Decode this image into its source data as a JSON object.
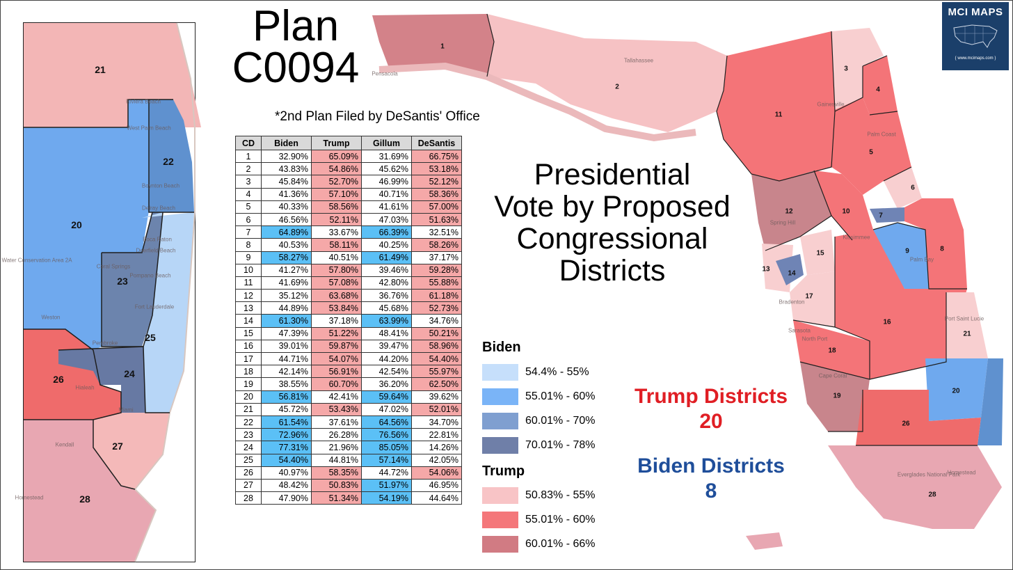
{
  "title_line1": "Plan",
  "title_line2": "C0094",
  "subtitle": "*2nd Plan Filed by DeSantis' Office",
  "heading_lines": [
    "Presidential",
    "Vote by Proposed",
    "Congressional",
    "Districts"
  ],
  "badge": {
    "title": "MCI MAPS",
    "url": "{ www.mcimaps.com }"
  },
  "colors": {
    "biden": [
      "#c6dffb",
      "#7ab4f7",
      "#7f9fd0",
      "#6f7fa8"
    ],
    "trump": [
      "#f8c4c6",
      "#f4777a",
      "#d17b83"
    ],
    "cell_biden": "#5bc0f6",
    "cell_trump": "#f5a8a8",
    "trump_text": "#e01e24",
    "biden_text": "#1f4e9a"
  },
  "table": {
    "headers": [
      "CD",
      "Biden",
      "Trump",
      "Gillum",
      "DeSantis"
    ],
    "rows": [
      [
        "1",
        "32.90%",
        "65.09%",
        "31.69%",
        "66.75%"
      ],
      [
        "2",
        "43.83%",
        "54.86%",
        "45.62%",
        "53.18%"
      ],
      [
        "3",
        "45.84%",
        "52.70%",
        "46.99%",
        "52.12%"
      ],
      [
        "4",
        "41.36%",
        "57.10%",
        "40.71%",
        "58.36%"
      ],
      [
        "5",
        "40.33%",
        "58.56%",
        "41.61%",
        "57.00%"
      ],
      [
        "6",
        "46.56%",
        "52.11%",
        "47.03%",
        "51.63%"
      ],
      [
        "7",
        "64.89%",
        "33.67%",
        "66.39%",
        "32.51%"
      ],
      [
        "8",
        "40.53%",
        "58.11%",
        "40.25%",
        "58.26%"
      ],
      [
        "9",
        "58.27%",
        "40.51%",
        "61.49%",
        "37.17%"
      ],
      [
        "10",
        "41.27%",
        "57.80%",
        "39.46%",
        "59.28%"
      ],
      [
        "11",
        "41.69%",
        "57.08%",
        "42.80%",
        "55.88%"
      ],
      [
        "12",
        "35.12%",
        "63.68%",
        "36.76%",
        "61.18%"
      ],
      [
        "13",
        "44.89%",
        "53.84%",
        "45.68%",
        "52.73%"
      ],
      [
        "14",
        "61.30%",
        "37.18%",
        "63.99%",
        "34.76%"
      ],
      [
        "15",
        "47.39%",
        "51.22%",
        "48.41%",
        "50.21%"
      ],
      [
        "16",
        "39.01%",
        "59.87%",
        "39.47%",
        "58.96%"
      ],
      [
        "17",
        "44.71%",
        "54.07%",
        "44.20%",
        "54.40%"
      ],
      [
        "18",
        "42.14%",
        "56.91%",
        "42.54%",
        "55.97%"
      ],
      [
        "19",
        "38.55%",
        "60.70%",
        "36.20%",
        "62.50%"
      ],
      [
        "20",
        "56.81%",
        "42.41%",
        "59.64%",
        "39.62%"
      ],
      [
        "21",
        "45.72%",
        "53.43%",
        "47.02%",
        "52.01%"
      ],
      [
        "22",
        "61.54%",
        "37.61%",
        "64.56%",
        "34.70%"
      ],
      [
        "23",
        "72.96%",
        "26.28%",
        "76.56%",
        "22.81%"
      ],
      [
        "24",
        "77.31%",
        "21.96%",
        "85.05%",
        "14.26%"
      ],
      [
        "25",
        "54.40%",
        "44.81%",
        "57.14%",
        "42.05%"
      ],
      [
        "26",
        "40.97%",
        "58.35%",
        "44.72%",
        "54.06%"
      ],
      [
        "27",
        "48.42%",
        "50.83%",
        "51.97%",
        "46.95%"
      ],
      [
        "28",
        "47.90%",
        "51.34%",
        "54.19%",
        "44.64%"
      ]
    ]
  },
  "legend": {
    "biden_title": "Biden",
    "biden": [
      "54.4% - 55%",
      "55.01% - 60%",
      "60.01% - 70%",
      "70.01% - 78%"
    ],
    "trump_title": "Trump",
    "trump": [
      "50.83% - 55%",
      "55.01% - 60%",
      "60.01% - 66%"
    ]
  },
  "summary": {
    "trump_label": "Trump Districts",
    "trump_count": "20",
    "biden_label": "Biden Districts",
    "biden_count": "8"
  },
  "map_labels": {
    "inset": [
      "21",
      "22",
      "20",
      "23",
      "25",
      "26",
      "24",
      "27",
      "28"
    ],
    "main": [
      "1",
      "2",
      "3",
      "4",
      "11",
      "5",
      "6",
      "12",
      "10",
      "7",
      "9",
      "8",
      "15",
      "13",
      "14",
      "17",
      "16",
      "21",
      "18",
      "19",
      "20",
      "26",
      "28"
    ]
  },
  "inset_places": [
    "Riviera Beach",
    "West Palm Beach",
    "Boynton Beach",
    "Delray Beach",
    "Boca Raton",
    "Deerfield Beach",
    "Coral Springs",
    "Pompano Beach",
    "Fort Lauderdale",
    "Weston",
    "Pembroke",
    "Hialeah",
    "Miami",
    "Kendall",
    "Homestead",
    "Water Conservation Area 2A"
  ],
  "main_places": [
    "Pensacola",
    "Tallahassee",
    "Gainesville",
    "Palm Coast",
    "Spring Hill",
    "Kissimmee",
    "Palm Bay",
    "Bradenton",
    "Sarasota",
    "North Port",
    "Cape Coral",
    "Port Saint Lucie",
    "Everglades National Park",
    "Homestead"
  ]
}
